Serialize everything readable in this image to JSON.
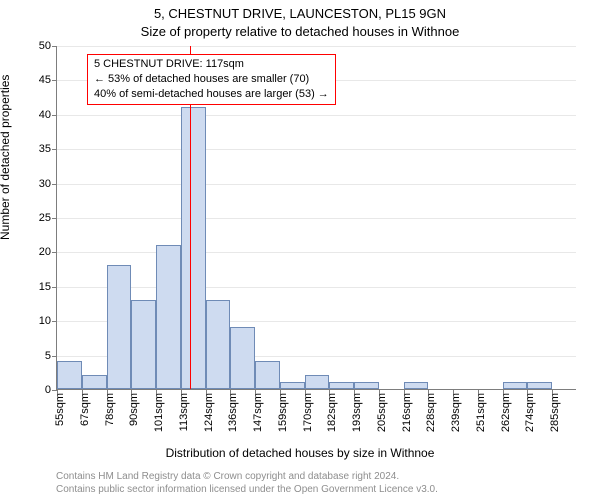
{
  "title": "5, CHESTNUT DRIVE, LAUNCESTON, PL15 9GN",
  "subtitle": "Size of property relative to detached houses in Withnoe",
  "ylabel": "Number of detached properties",
  "xlabel": "Distribution of detached houses by size in Withnoe",
  "licence": {
    "line1": "Contains HM Land Registry data © Crown copyright and database right 2024.",
    "line2": "Contains public sector information licensed under the Open Government Licence v3.0."
  },
  "chart": {
    "type": "histogram",
    "ylim": [
      0,
      50
    ],
    "yticks": [
      0,
      5,
      10,
      15,
      20,
      25,
      30,
      35,
      40,
      45,
      50
    ],
    "x_bin_width": 11.5,
    "x_start": 55,
    "x_categories": [
      "55sqm",
      "67sqm",
      "78sqm",
      "90sqm",
      "101sqm",
      "113sqm",
      "124sqm",
      "136sqm",
      "147sqm",
      "159sqm",
      "170sqm",
      "182sqm",
      "193sqm",
      "205sqm",
      "216sqm",
      "228sqm",
      "239sqm",
      "251sqm",
      "262sqm",
      "274sqm",
      "285sqm"
    ],
    "values": [
      4,
      2,
      18,
      13,
      21,
      41,
      13,
      9,
      4,
      1,
      2,
      1,
      1,
      0,
      1,
      0,
      0,
      0,
      1,
      1,
      0
    ],
    "bar_fill": "#cedbf0",
    "bar_stroke": "#6f8bb6",
    "grid_color": "#7d7d7d",
    "background": "#ffffff",
    "marker": {
      "x_value": 117,
      "color": "#ff0000",
      "width": 1
    },
    "annotation": {
      "border_color": "#ff0000",
      "lines": [
        "5 CHESTNUT DRIVE: 117sqm",
        "← 53% of detached houses are smaller (70)",
        "40% of semi-detached houses are larger (53) →"
      ]
    }
  }
}
